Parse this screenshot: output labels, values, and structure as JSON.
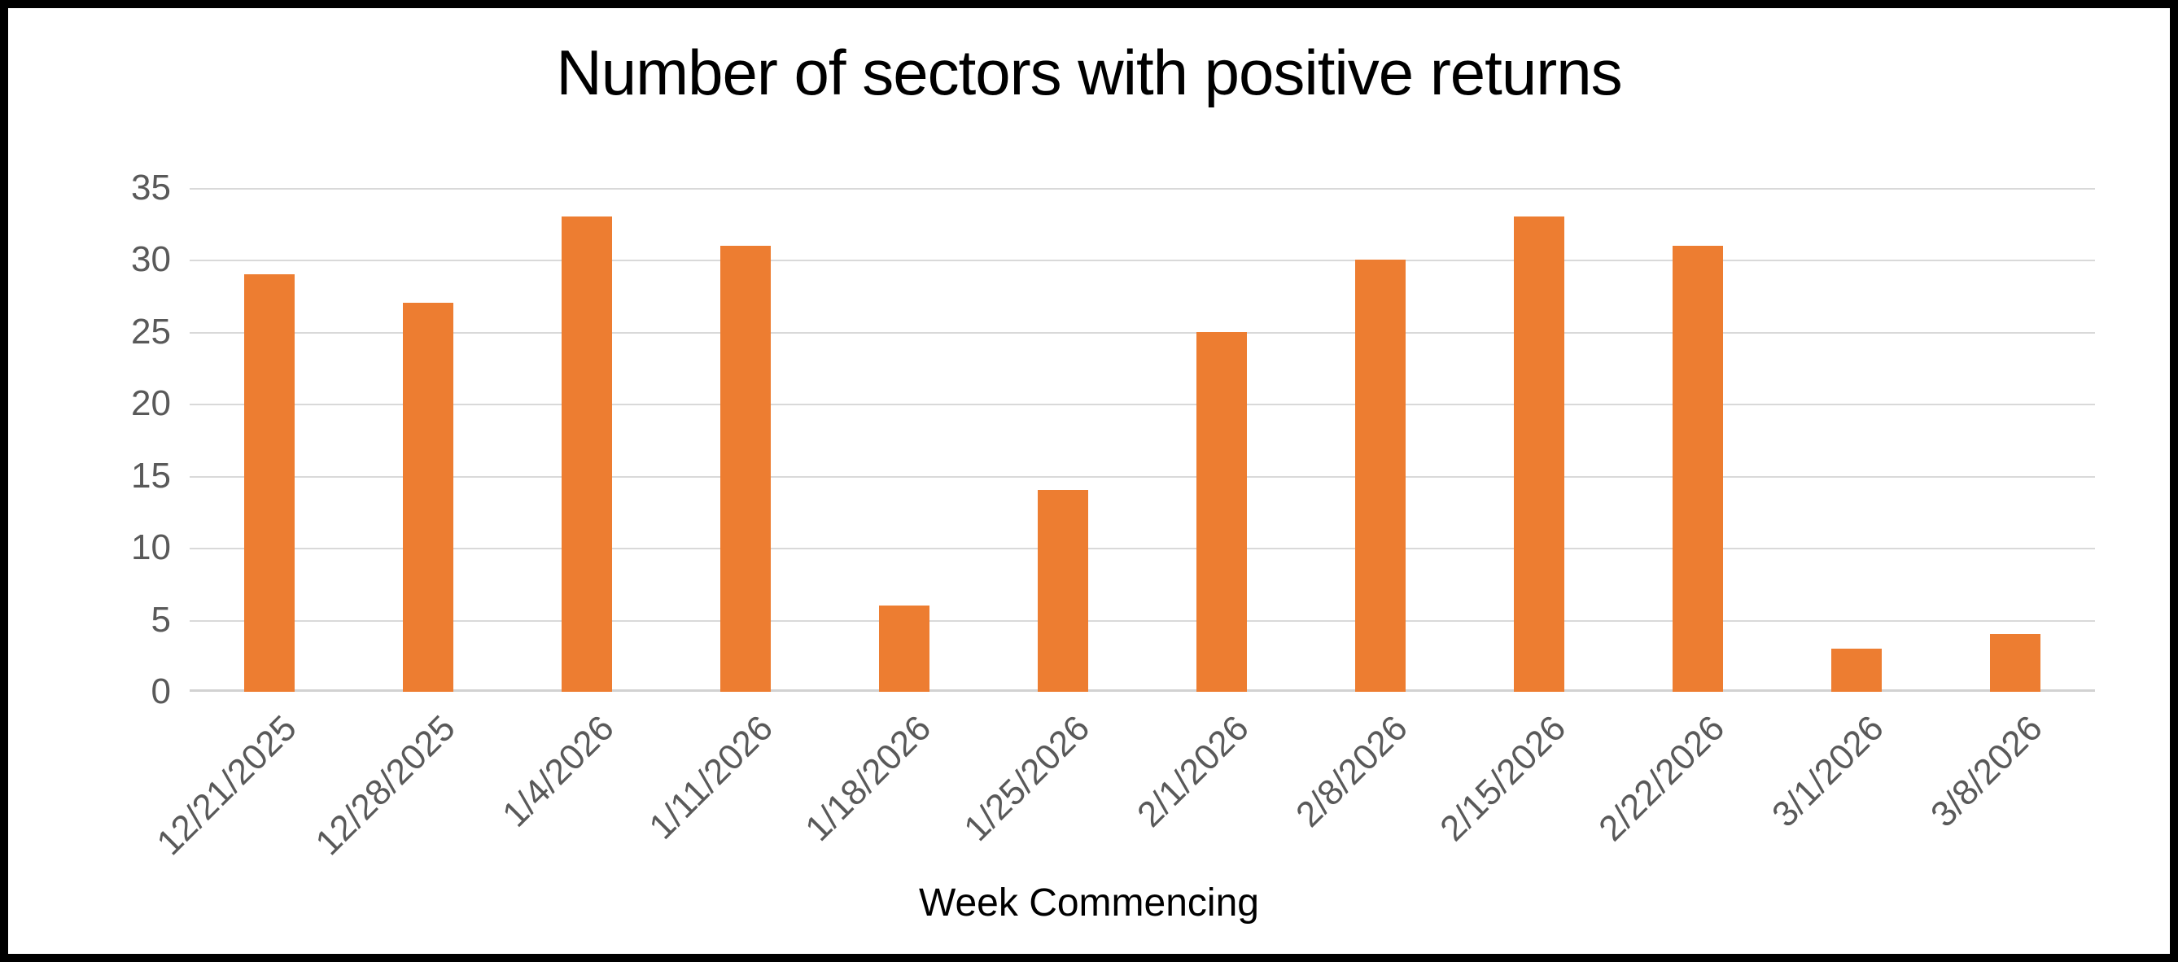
{
  "chart_data": {
    "type": "bar",
    "title": "Number of sectors with positive returns",
    "xlabel": "Week Commencing",
    "ylabel": "",
    "categories": [
      "12/21/2025",
      "12/28/2025",
      "1/4/2026",
      "1/11/2026",
      "1/18/2026",
      "1/25/2026",
      "2/1/2026",
      "2/8/2026",
      "2/15/2026",
      "2/22/2026",
      "3/1/2026",
      "3/8/2026"
    ],
    "values": [
      29,
      27,
      33,
      31,
      6,
      14,
      25,
      30,
      33,
      31,
      3,
      4
    ],
    "ylim": [
      0,
      35
    ],
    "yticks": [
      0,
      5,
      10,
      15,
      20,
      25,
      30,
      35
    ],
    "grid": true,
    "legend_position": "none",
    "colors": {
      "bar": "#ED7D31",
      "gridline": "#D9D9D9",
      "axis_line": "#D2D2D2",
      "tick_label": "#595959",
      "title": "#000000",
      "background": "#FFFFFF",
      "frame": "#000000"
    }
  }
}
